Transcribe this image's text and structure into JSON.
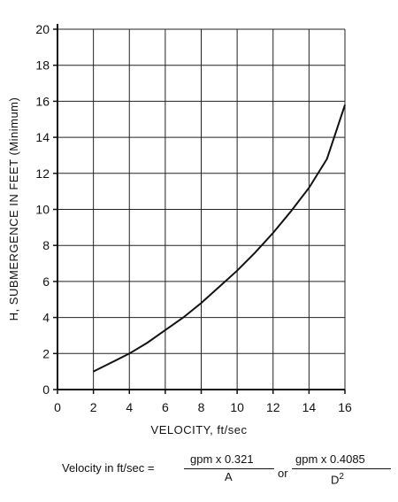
{
  "chart_data": {
    "type": "line",
    "xlabel": "VELOCITY, ft/sec",
    "ylabel": "H, SUBMERGENCE IN FEET (Minimum)",
    "xlim": [
      0,
      16
    ],
    "ylim": [
      0,
      20
    ],
    "xticks": [
      0,
      2,
      4,
      6,
      8,
      10,
      12,
      14,
      16
    ],
    "yticks": [
      0,
      2,
      4,
      6,
      8,
      10,
      12,
      14,
      16,
      18,
      20
    ],
    "grid": true,
    "series": [
      {
        "x": [
          2,
          3,
          4,
          5,
          6,
          7,
          8,
          9,
          10,
          11,
          12,
          13,
          14,
          15,
          16
        ],
        "y": [
          1.0,
          1.5,
          2.0,
          2.6,
          3.3,
          4.0,
          4.8,
          5.7,
          6.6,
          7.6,
          8.7,
          9.9,
          11.2,
          12.8,
          15.8
        ]
      }
    ]
  },
  "formula": {
    "lhs": "Velocity in ft/sec =",
    "num1": "gpm x 0.321",
    "den1": "A",
    "or": "or",
    "num2": "gpm x 0.4085",
    "den2_base": "D",
    "den2_exp": "2"
  }
}
